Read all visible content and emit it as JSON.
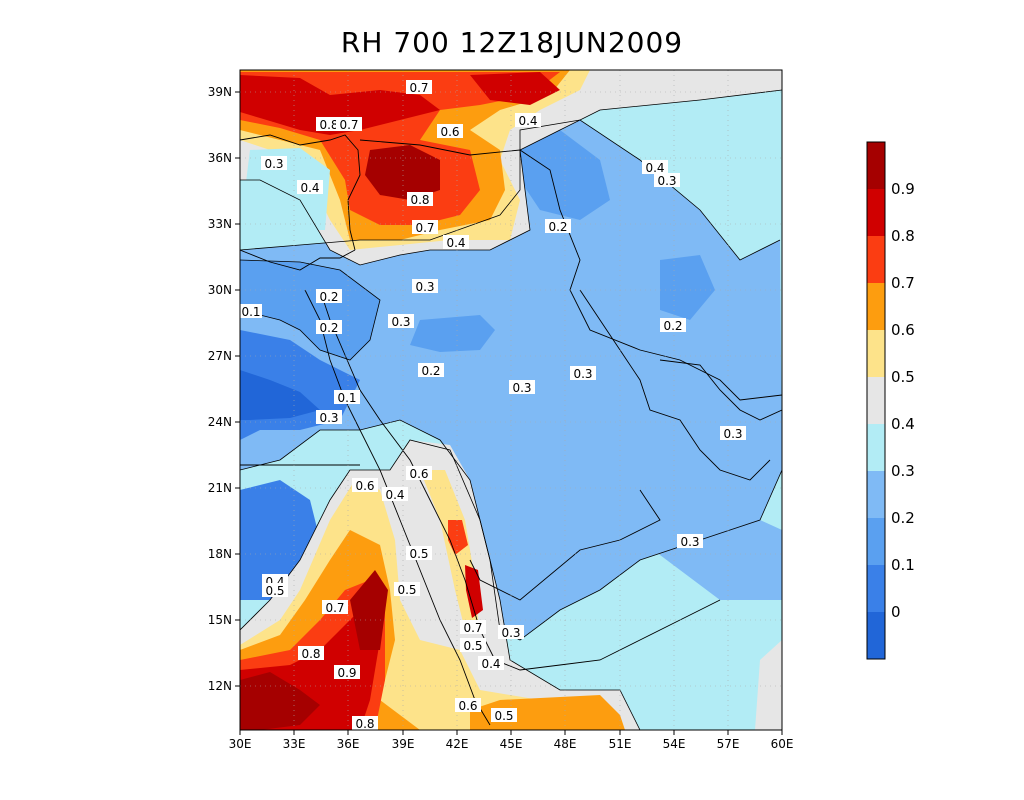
{
  "title": "RH 700 12Z18JUN2009",
  "map": {
    "lon_ticks": [
      "30E",
      "33E",
      "36E",
      "39E",
      "42E",
      "45E",
      "48E",
      "51E",
      "54E",
      "57E",
      "60E"
    ],
    "lat_ticks": [
      "39N",
      "36N",
      "33N",
      "30N",
      "27N",
      "24N",
      "21N",
      "18N",
      "15N",
      "12N"
    ],
    "lon_range": [
      30,
      60
    ],
    "lat_range": [
      10,
      40
    ],
    "contour_labels": [
      "0.7",
      "0.4",
      "0.6",
      "0.8",
      "0.7",
      "0.3",
      "0.4",
      "0.8",
      "0.7",
      "0.4",
      "0.2",
      "0.4",
      "0.3",
      "0.3",
      "0.2",
      "0.1",
      "0.3",
      "0.2",
      "0.2",
      "0.2",
      "0.3",
      "0.1",
      "0.3",
      "0.3",
      "0.3",
      "0.6",
      "0.6",
      "0.4",
      "0.5",
      "0.4",
      "0.5",
      "0.5",
      "0.7",
      "0.3",
      "0.7",
      "0.5",
      "0.8",
      "0.9",
      "0.4",
      "0.6",
      "0.5",
      "0.8",
      "0.3"
    ]
  },
  "colorbar": {
    "labels": [
      "0",
      "0.1",
      "0.2",
      "0.3",
      "0.4",
      "0.5",
      "0.6",
      "0.7",
      "0.8",
      "0.9"
    ],
    "colors": [
      "#2166d8",
      "#3a80e8",
      "#5aa0f0",
      "#7fbaf5",
      "#b2ecf5",
      "#e6e6e6",
      "#fde38a",
      "#fd9d0f",
      "#fb3d12",
      "#d00000",
      "#a50000"
    ]
  },
  "palette": {
    "level_0": "#2166d8",
    "level_1": "#3a80e8",
    "level_2": "#5aa0f0",
    "level_3": "#7fbaf5",
    "level_4": "#b2ecf5",
    "level_5": "#e6e6e6",
    "level_6": "#fde38a",
    "level_7": "#fd9d0f",
    "level_8": "#fb3d12",
    "level_9": "#d00000",
    "level_10": "#a50000"
  }
}
